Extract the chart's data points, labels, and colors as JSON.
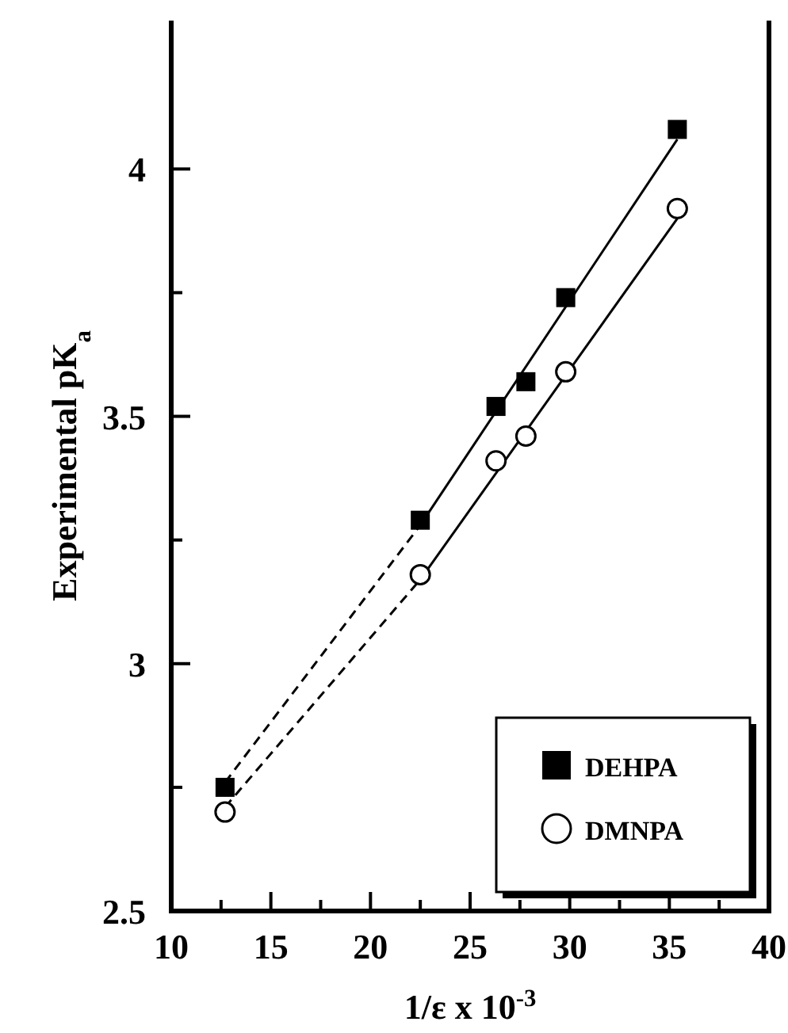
{
  "chart_data": {
    "type": "scatter",
    "xlabel": "1/ε x 10$^{-3}$",
    "ylabel": "Experimental pK$_{a}$",
    "xlim": [
      10,
      40
    ],
    "ylim": [
      2.5,
      4.3
    ],
    "xticks": [
      10,
      {
        "value": 12.5,
        "label": null
      },
      15,
      {
        "value": 17.5,
        "label": null
      },
      20,
      {
        "value": 22.5,
        "label": null
      },
      25,
      {
        "value": 27.5,
        "label": null
      },
      30,
      {
        "value": 32.5,
        "label": null
      },
      35,
      {
        "value": 37.5,
        "label": null
      },
      40
    ],
    "yticks": [
      2.5,
      {
        "value": 2.75,
        "label": null
      },
      3,
      {
        "value": 3.25,
        "label": null
      },
      3.5,
      {
        "value": 3.75,
        "label": null
      },
      4
    ],
    "grid": false,
    "legend": "bottom right",
    "series": [
      {
        "type": "line",
        "color": "#000000",
        "marker": "none",
        "line_style": "dashed",
        "x": [
          12.7,
          22.5
        ],
        "values": [
          2.76,
          3.28
        ]
      },
      {
        "type": "line",
        "color": "#000000",
        "marker": "none",
        "line_style": "solid",
        "x": [
          22.5,
          35.4
        ],
        "values": [
          3.28,
          4.06
        ]
      },
      {
        "type": "line",
        "color": "#000000",
        "marker": "none",
        "line_style": "dashed",
        "x": [
          12.7,
          22.5
        ],
        "values": [
          2.71,
          3.17
        ]
      },
      {
        "type": "line",
        "color": "#000000",
        "marker": "none",
        "line_style": "solid",
        "x": [
          22.5,
          35.4
        ],
        "values": [
          3.17,
          3.9
        ]
      },
      {
        "name": "DEHPA",
        "color": "#000000",
        "marker": "square",
        "x": [
          12.7,
          22.5,
          26.3,
          27.8,
          29.8,
          35.4
        ],
        "values": [
          2.75,
          3.29,
          3.52,
          3.57,
          3.74,
          4.08
        ]
      },
      {
        "name": "DMNPA",
        "color": "#000000",
        "marker": "circle",
        "x": [
          12.7,
          22.5,
          26.3,
          27.8,
          29.8,
          35.4
        ],
        "values": [
          2.7,
          3.18,
          3.41,
          3.46,
          3.59,
          3.92
        ]
      }
    ]
  }
}
